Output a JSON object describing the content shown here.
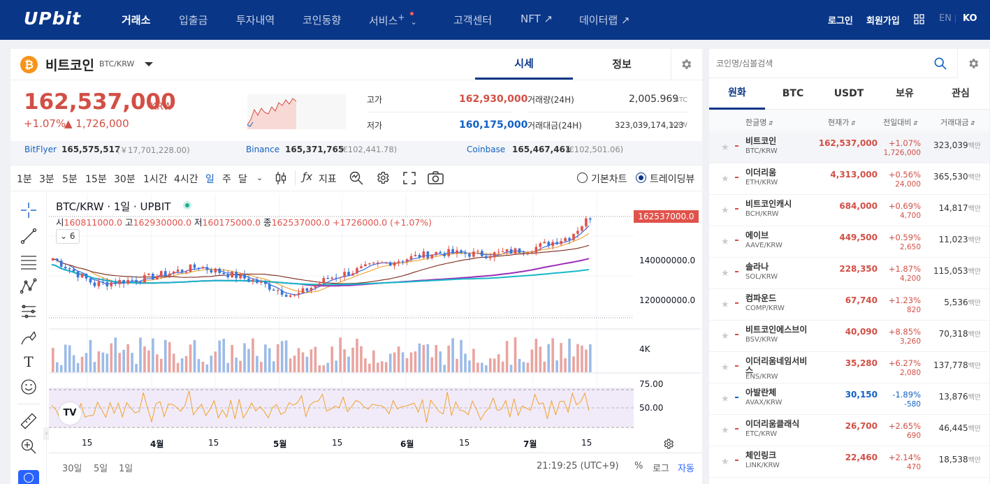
{
  "nav": {
    "logo": "UPbit",
    "items": [
      "거래소",
      "입출금",
      "투자내역",
      "코인동향",
      "서비스",
      "고객센터",
      "NFT ↗",
      "데이터랩 ↗"
    ],
    "service_plus": "+",
    "login": "로그인",
    "signup": "회원가입",
    "lang_en": "EN",
    "lang_ko": "KO"
  },
  "ticker": {
    "name": "비트코인",
    "pair": "BTC/KRW",
    "tab_price": "시세",
    "tab_info": "정보",
    "price": "162,537,000",
    "price_unit": "KRW",
    "change_pct": "+1.07%",
    "change_amt": "▲ 1,726,000",
    "high_label": "고가",
    "high": "162,930,000",
    "low_label": "저가",
    "low": "160,175,000",
    "volume_label": "거래량(24H)",
    "volume": "2,005.969",
    "volume_unit": "BTC",
    "amount_label": "거래대금(24H)",
    "amount": "323,039,174,123",
    "amount_unit": "KRW"
  },
  "exchanges": [
    {
      "name": "BitFlyer",
      "price": "165,575,517",
      "diff": "(￥17,701,228.00)"
    },
    {
      "name": "Binance",
      "price": "165,371,765",
      "diff": "(€102,441.78)"
    },
    {
      "name": "Coinbase",
      "price": "165,467,461",
      "diff": "(€102,501.06)"
    }
  ],
  "toolbar": {
    "timeframes": [
      "1분",
      "3분",
      "5분",
      "15분",
      "30분",
      "1시간",
      "4시간",
      "일",
      "주",
      "달"
    ],
    "active": "일",
    "indicators": "지표",
    "basic_chart": "기본차트",
    "tradingview": "트레이딩뷰"
  },
  "chart": {
    "legend_title": "BTC/KRW · 1일 · UPBIT",
    "o_label": "시",
    "o": "160811000.0",
    "h_label": "고",
    "h": "162930000.0",
    "l_label": "저",
    "l": "160175000.0",
    "c_label": "종",
    "c": "162537000.0",
    "delta": "+1726000.0 (+1.07%)",
    "ma_count": "6",
    "last_price_tag": "162537000.0",
    "y_ticks": [
      "160000000.0",
      "140000000.0",
      "120000000.0"
    ],
    "vol_tick": "4K",
    "rsi_ticks": [
      "75.00",
      "50.00"
    ],
    "x_ticks": [
      "15",
      "4월",
      "15",
      "5월",
      "15",
      "6월",
      "15",
      "7월",
      "15"
    ],
    "ranges": [
      "30일",
      "5일",
      "1일"
    ],
    "clock": "21:19:25 (UTC+9)",
    "pct": "%",
    "log": "로그",
    "auto": "자동",
    "colors": {
      "up": "#e0524b",
      "down": "#3a76d6",
      "ma_cyan": "#16b9c9",
      "ma_purple": "#9b2db8",
      "ma_brown": "#7d2a1a",
      "ma_orange": "#f2a12b",
      "ma_blue": "#2b5fe0",
      "rsi": "#f2a12b"
    }
  },
  "market": {
    "search_placeholder": "코인명/심볼검색",
    "tabs": [
      "원화",
      "BTC",
      "USDT",
      "보유",
      "관심"
    ],
    "headers": [
      "한글명",
      "현재가",
      "전일대비",
      "거래대금"
    ],
    "unit": "백만",
    "coins": [
      {
        "name": "비트코인",
        "sym": "BTC/KRW",
        "price": "162,537,000",
        "pct": "+1.07%",
        "amt": "1,726,000",
        "vol": "323,039",
        "dir": "up"
      },
      {
        "name": "이더리움",
        "sym": "ETH/KRW",
        "price": "4,313,000",
        "pct": "+0.56%",
        "amt": "24,000",
        "vol": "365,530",
        "dir": "up"
      },
      {
        "name": "비트코인캐시",
        "sym": "BCH/KRW",
        "price": "684,000",
        "pct": "+0.69%",
        "amt": "4,700",
        "vol": "14,817",
        "dir": "up"
      },
      {
        "name": "에이브",
        "sym": "AAVE/KRW",
        "price": "449,500",
        "pct": "+0.59%",
        "amt": "2,650",
        "vol": "11,023",
        "dir": "up"
      },
      {
        "name": "솔라나",
        "sym": "SOL/KRW",
        "price": "228,350",
        "pct": "+1.87%",
        "amt": "4,200",
        "vol": "115,053",
        "dir": "up"
      },
      {
        "name": "컴파운드",
        "sym": "COMP/KRW",
        "price": "67,740",
        "pct": "+1.23%",
        "amt": "820",
        "vol": "5,536",
        "dir": "up"
      },
      {
        "name": "비트코인에스브이",
        "sym": "BSV/KRW",
        "price": "40,090",
        "pct": "+8.85%",
        "amt": "3,260",
        "vol": "70,318",
        "dir": "up"
      },
      {
        "name": "이더리움네임서비스",
        "sym": "ENS/KRW",
        "price": "35,280",
        "pct": "+6.27%",
        "amt": "2,080",
        "vol": "137,778",
        "dir": "up"
      },
      {
        "name": "아발란체",
        "sym": "AVAX/KRW",
        "price": "30,150",
        "pct": "-1.89%",
        "amt": "-580",
        "vol": "13,876",
        "dir": "down"
      },
      {
        "name": "이더리움클래식",
        "sym": "ETC/KRW",
        "price": "26,700",
        "pct": "+2.65%",
        "amt": "690",
        "vol": "46,445",
        "dir": "up"
      },
      {
        "name": "체인링크",
        "sym": "LINK/KRW",
        "price": "22,460",
        "pct": "+2.14%",
        "amt": "470",
        "vol": "18,538",
        "dir": "up"
      }
    ]
  }
}
